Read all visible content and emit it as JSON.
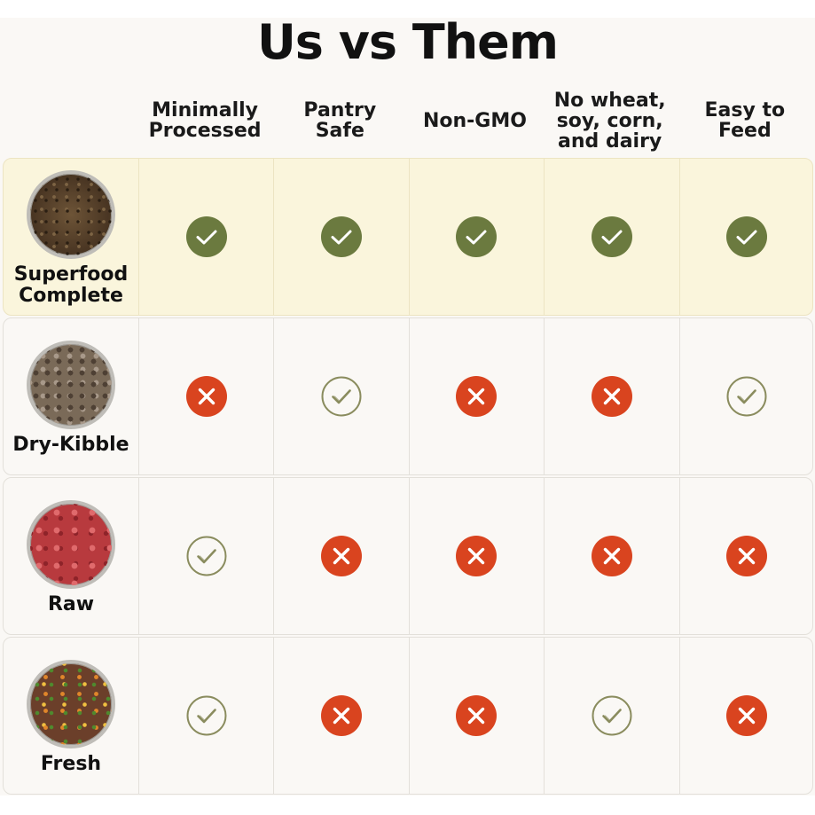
{
  "title": "Us vs Them",
  "columns": [
    "Minimally\nProcessed",
    "Pantry\nSafe",
    "Non-GMO",
    "No wheat,\nsoy, corn,\nand dairy",
    "Easy to\nFeed"
  ],
  "rows": [
    {
      "label": "Superfood\nComplete",
      "image": "superfood-bowl-image",
      "highlight": true,
      "marks": [
        "us-check",
        "us-check",
        "us-check",
        "us-check",
        "us-check"
      ]
    },
    {
      "label": "Dry-Kibble",
      "image": "kibble-bowl-image",
      "highlight": false,
      "marks": [
        "cross",
        "outline-check",
        "cross",
        "cross",
        "outline-check"
      ]
    },
    {
      "label": "Raw",
      "image": "raw-bowl-image",
      "highlight": false,
      "marks": [
        "outline-check",
        "cross",
        "cross",
        "cross",
        "cross"
      ]
    },
    {
      "label": "Fresh",
      "image": "fresh-bowl-image",
      "highlight": false,
      "marks": [
        "outline-check",
        "cross",
        "cross",
        "outline-check",
        "cross"
      ]
    }
  ],
  "colors": {
    "us_check": "#6b7a3f",
    "cross": "#d9441f",
    "outline_check": "#8a8c5e",
    "highlight_row": "#faf5dc"
  }
}
